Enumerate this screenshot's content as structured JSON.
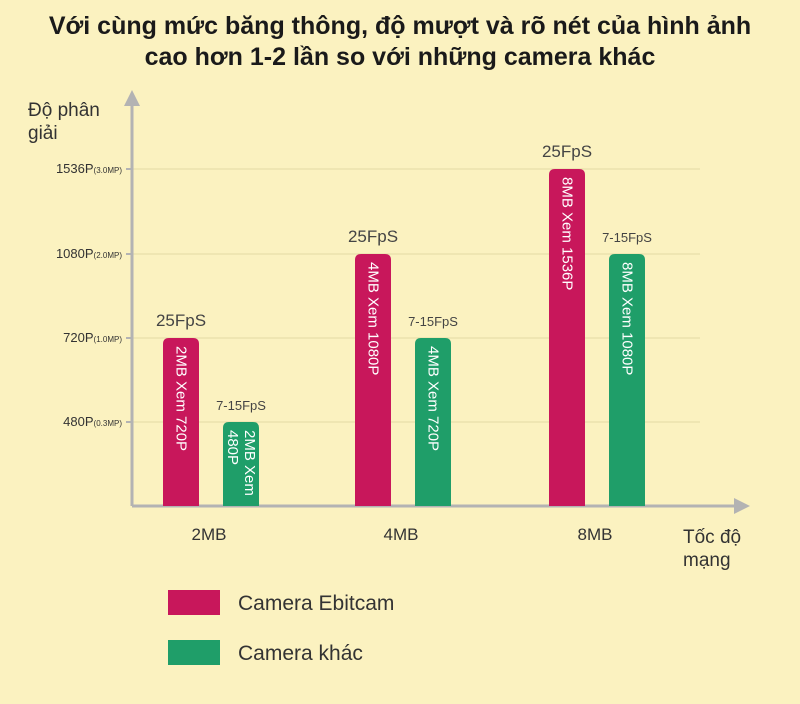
{
  "chart_data": {
    "type": "bar",
    "title_lines": [
      "Với cùng mức băng thông, độ mượt và rõ nét của hình ảnh",
      "cao hơn 1-2 lần so với những camera khác"
    ],
    "ylabel_lines": [
      "Độ phân",
      "giải"
    ],
    "xlabel_lines": [
      "Tốc độ",
      "mạng"
    ],
    "y_ticks": [
      {
        "value": 480,
        "label": "480P",
        "sub": "(0.3MP)"
      },
      {
        "value": 720,
        "label": "720P",
        "sub": "(1.0MP)"
      },
      {
        "value": 1080,
        "label": "1080P",
        "sub": "(2.0MP)"
      },
      {
        "value": 1536,
        "label": "1536P",
        "sub": "(3.0MP)"
      }
    ],
    "categories": [
      "2MB",
      "4MB",
      "8MB"
    ],
    "series": [
      {
        "name": "Camera Ebitcam",
        "color": "#c8175b",
        "values": [
          720,
          1080,
          1536
        ],
        "bar_labels": [
          [
            "2MB Xem 720P"
          ],
          [
            "4MB Xem 1080P"
          ],
          [
            "8MB Xem 1536P"
          ]
        ],
        "fps": [
          "25FpS",
          "25FpS",
          "25FpS"
        ]
      },
      {
        "name": "Camera khác",
        "color": "#1f9e69",
        "values": [
          480,
          720,
          1080
        ],
        "bar_labels": [
          [
            "2MB Xem",
            "480P"
          ],
          [
            "4MB Xem 720P"
          ],
          [
            "8MB Xem 1080P"
          ]
        ],
        "fps": [
          "7-15FpS",
          "7-15FpS",
          "7-15FpS"
        ]
      }
    ],
    "grid": true,
    "legend_position": "bottom-left"
  }
}
